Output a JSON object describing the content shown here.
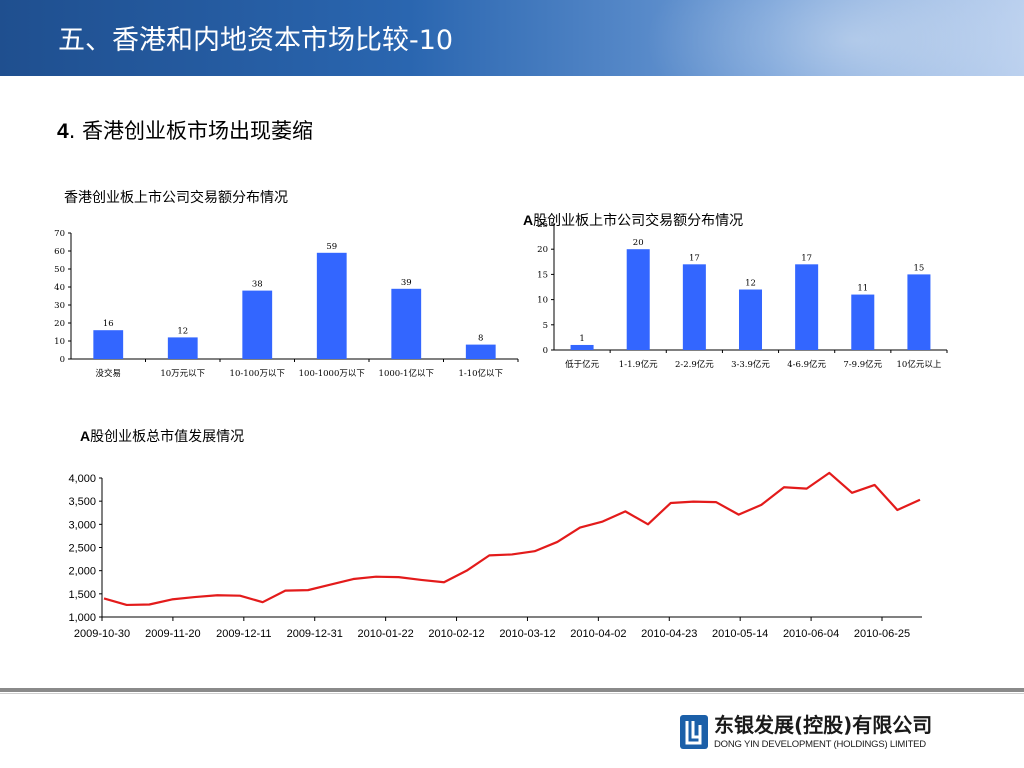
{
  "header": {
    "title": "五、香港和内地资本市场比较-10"
  },
  "section": {
    "number": "4",
    "text": ". 香港创业板市场出现萎缩"
  },
  "charts_text": {
    "hk_title": "香港创业板上市公司交易额分布情况",
    "a_title_prefix": "A",
    "a_title_rest": "股创业板上市公司交易额分布情况",
    "line_title_prefix": "A",
    "line_title_rest": "股创业板总市值发展情况"
  },
  "colors": {
    "bar": "#3366ff",
    "line": "#e31b1b",
    "banner_start": "#1f4f8f",
    "banner_end": "#b9cfee"
  },
  "chart_data": [
    {
      "type": "bar",
      "title": "香港创业板上市公司交易额分布情况",
      "categories": [
        "没交易",
        "10万元以下",
        "10-100万以下",
        "100-1000万以下",
        "1000-1亿以下",
        "1-10亿以下"
      ],
      "values": [
        16,
        12,
        38,
        59,
        39,
        8
      ],
      "ylim": [
        0,
        70
      ],
      "yticks": [
        0,
        10,
        20,
        30,
        40,
        50,
        60,
        70
      ],
      "grid": false
    },
    {
      "type": "bar",
      "title": "A股创业板上市公司交易额分布情况",
      "categories": [
        "低于亿元",
        "1-1.9亿元",
        "2-2.9亿元",
        "3-3.9亿元",
        "4-6.9亿元",
        "7-9.9亿元",
        "10亿元以上"
      ],
      "values": [
        1,
        20,
        17,
        12,
        17,
        11,
        15
      ],
      "ylim": [
        0,
        25
      ],
      "yticks": [
        0,
        5,
        10,
        15,
        20,
        25
      ],
      "grid": false
    },
    {
      "type": "line",
      "title": "A股创业板总市值发展情况",
      "ylim": [
        1000,
        4000
      ],
      "yticks": [
        "1,000",
        "1,500",
        "2,000",
        "2,500",
        "3,000",
        "3,500",
        "4,000"
      ],
      "ytick_values": [
        1000,
        1500,
        2000,
        2500,
        3000,
        3500,
        4000
      ],
      "xticks": [
        "2009-10-30",
        "2009-11-20",
        "2009-12-11",
        "2009-12-31",
        "2010-01-22",
        "2010-02-12",
        "2010-03-12",
        "2010-04-02",
        "2010-04-23",
        "2010-05-14",
        "2010-06-04",
        "2010-06-25"
      ],
      "values": [
        1400,
        1260,
        1270,
        1380,
        1430,
        1470,
        1460,
        1320,
        1570,
        1580,
        1700,
        1820,
        1870,
        1860,
        1800,
        1750,
        2000,
        2330,
        2350,
        2420,
        2620,
        2930,
        3060,
        3280,
        3000,
        3460,
        3490,
        3480,
        3210,
        3420,
        3800,
        3770,
        4110,
        3680,
        3850,
        3310,
        3530
      ],
      "grid": false
    }
  ],
  "footer": {
    "logo_cn": "东银发展(控股)有限公司",
    "logo_en": "DONG YIN DEVELOPMENT (HOLDINGS) LIMITED"
  }
}
